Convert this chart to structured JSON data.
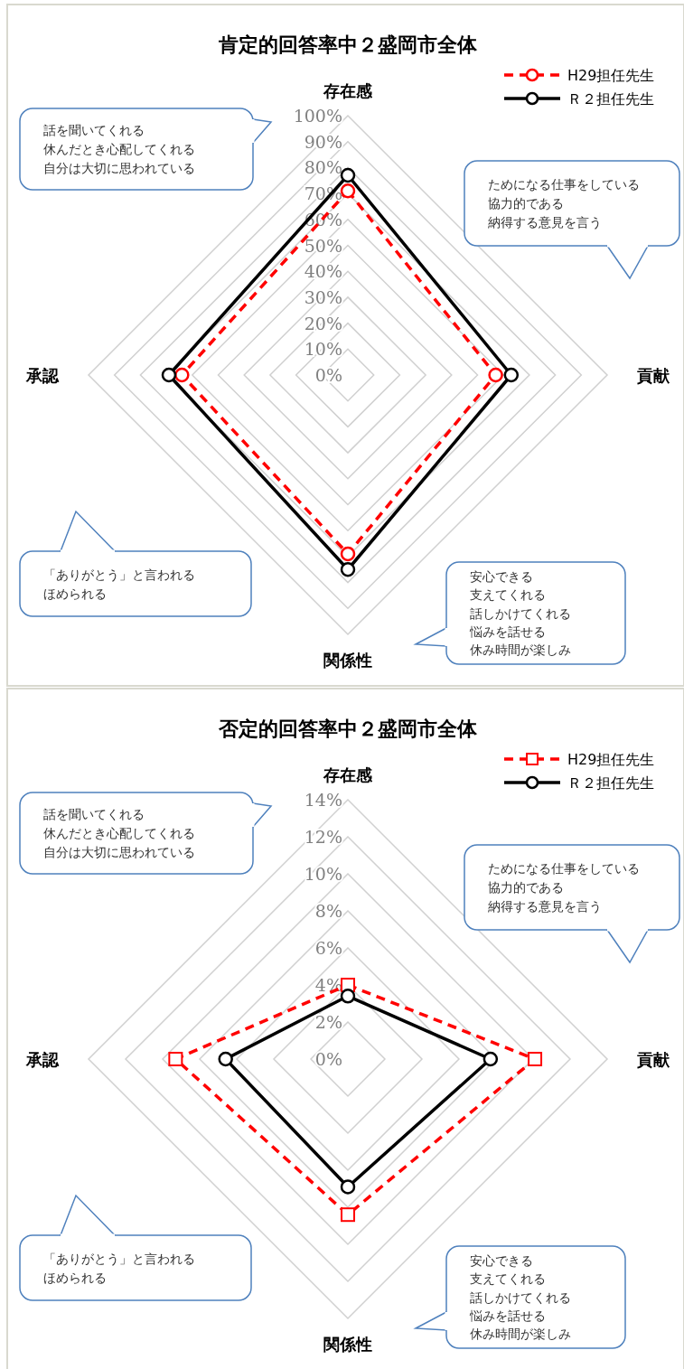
{
  "chart_data": [
    {
      "type": "radar",
      "title": "肯定的回答率中２盛岡市全体",
      "categories": [
        "存在感",
        "貢献",
        "関係性",
        "承認"
      ],
      "series": [
        {
          "name": "H29担任先生",
          "color": "#ff0000",
          "line_style": "dashed",
          "marker": "circle",
          "values": [
            71,
            57,
            69,
            64
          ]
        },
        {
          "name": "Ｒ２担任先生",
          "color": "#000000",
          "line_style": "solid",
          "marker": "circle",
          "values": [
            77,
            63,
            75,
            69
          ]
        }
      ],
      "ylim": [
        0,
        100
      ],
      "yticks": [
        {
          "value": 0,
          "label": "0%"
        },
        {
          "value": 10,
          "label": "10%"
        },
        {
          "value": 20,
          "label": "20%"
        },
        {
          "value": 30,
          "label": "30%"
        },
        {
          "value": 40,
          "label": "40%"
        },
        {
          "value": 50,
          "label": "50%"
        },
        {
          "value": 60,
          "label": "60%"
        },
        {
          "value": 70,
          "label": "70%"
        },
        {
          "value": 80,
          "label": "80%"
        },
        {
          "value": 90,
          "label": "90%"
        },
        {
          "value": 100,
          "label": "100%"
        }
      ],
      "grid": true,
      "legend": "top right",
      "annotations": [
        "話を聞いてくれる",
        "休んだとき心配してくれる",
        "自分は大切に思われている",
        "ためになる仕事をしている",
        "協力的である",
        "納得する意見を言う",
        "「ありがとう」と言われる",
        "ほめられる",
        "安心できる",
        "支えてくれる",
        "話しかけてくれる",
        "悩みを話せる",
        "休み時間が楽しみ"
      ]
    },
    {
      "type": "radar",
      "title": "否定的回答率中２盛岡市全体",
      "categories": [
        "存在感",
        "貢献",
        "関係性",
        "承認"
      ],
      "series": [
        {
          "name": "H29担任先生",
          "color": "#ff0000",
          "line_style": "dashed",
          "marker": "square",
          "values": [
            4.0,
            10.1,
            8.4,
            9.3
          ]
        },
        {
          "name": "Ｒ２担任先生",
          "color": "#000000",
          "line_style": "solid",
          "marker": "circle",
          "values": [
            3.4,
            7.7,
            6.9,
            6.6
          ]
        }
      ],
      "ylim": [
        0,
        14
      ],
      "yticks": [
        {
          "value": 0,
          "label": "0%"
        },
        {
          "value": 2,
          "label": "2%"
        },
        {
          "value": 4,
          "label": "4%"
        },
        {
          "value": 6,
          "label": "6%"
        },
        {
          "value": 8,
          "label": "8%"
        },
        {
          "value": 10,
          "label": "10%"
        },
        {
          "value": 12,
          "label": "12%"
        },
        {
          "value": 14,
          "label": "14%"
        }
      ],
      "grid": true,
      "legend": "top right",
      "annotations": [
        "話を聞いてくれる",
        "休んだとき心配してくれる",
        "自分は大切に思われている",
        "ためになる仕事をしている",
        "協力的である",
        "納得する意見を言う",
        "「ありがとう」と言われる",
        "ほめられる",
        "安心できる",
        "支えてくれる",
        "話しかけてくれる",
        "悩みを話せる",
        "休み時間が楽しみ"
      ]
    }
  ]
}
